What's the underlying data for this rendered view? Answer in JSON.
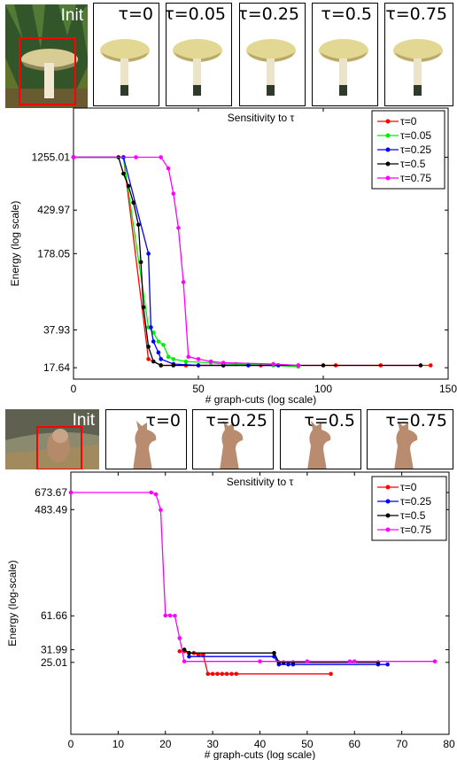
{
  "panel1": {
    "init_label": "Init",
    "tau_labels": [
      "τ=0",
      "τ=0.05",
      "τ=0.25",
      "τ=0.5",
      "τ=0.75"
    ]
  },
  "panel2": {
    "init_label": "Init",
    "tau_labels": [
      "τ=0",
      "τ=0.25",
      "τ=0.5",
      "τ=0.75"
    ]
  },
  "colors": {
    "red": "#ff0000",
    "green": "#00ee00",
    "blue": "#0000ff",
    "black": "#000000",
    "magenta": "#ff00ff"
  },
  "chart_data": [
    {
      "type": "line",
      "title": "Sensitivity to τ",
      "xlabel": "# graph-cuts (log scale)",
      "ylabel": "Energy (log scale)",
      "xlim": [
        0,
        150
      ],
      "xticks": [
        0,
        50,
        100,
        150
      ],
      "yscale": "log",
      "ylim": [
        14,
        3400
      ],
      "yticks": [
        17.64,
        37.93,
        178.05,
        429.97,
        1255.01
      ],
      "ytick_labels": [
        "17.64",
        "37.93",
        "178.05",
        "429.97",
        "1255.01"
      ],
      "legend_position": "top-right",
      "series": [
        {
          "name": "τ=0",
          "color": "#ff0000",
          "x": [
            0,
            20,
            30,
            35,
            45,
            50,
            60,
            75,
            90,
            105,
            123,
            143
          ],
          "y": [
            1255,
            1255,
            21,
            18.5,
            18.5,
            18.5,
            18.5,
            18.5,
            18.5,
            18.5,
            18.5,
            18.5
          ]
        },
        {
          "name": "τ=0.05",
          "color": "#00ee00",
          "x": [
            0,
            20,
            30,
            32,
            34,
            36,
            38,
            40,
            45,
            55,
            60,
            65,
            70,
            80,
            90
          ],
          "y": [
            1255,
            1255,
            40,
            36,
            30,
            28,
            22,
            21,
            20,
            19.5,
            19,
            19,
            18.8,
            18.5,
            18
          ]
        },
        {
          "name": "τ=0.25",
          "color": "#0000ff",
          "x": [
            0,
            20,
            30,
            31,
            32,
            34,
            35,
            40,
            50,
            60,
            70,
            82
          ],
          "y": [
            1255,
            1255,
            178,
            40,
            30,
            24,
            21,
            19,
            18.5,
            18.5,
            18.5,
            18.5
          ]
        },
        {
          "name": "τ=0.5",
          "color": "#000000",
          "x": [
            0,
            18,
            20,
            22,
            24,
            26,
            27,
            28,
            30,
            32,
            35,
            40,
            60,
            100,
            139
          ],
          "y": [
            1255,
            1255,
            900,
            700,
            500,
            320,
            150,
            60,
            27,
            20,
            18.5,
            18.5,
            18.5,
            18.5,
            18.5
          ]
        },
        {
          "name": "τ=0.75",
          "color": "#ff00ff",
          "x": [
            0,
            25,
            35,
            38,
            40,
            42,
            44,
            46,
            50,
            55,
            60,
            80,
            90
          ],
          "y": [
            1255,
            1255,
            1255,
            1000,
            600,
            300,
            100,
            22,
            21,
            20,
            19.5,
            19,
            18.5
          ]
        }
      ]
    },
    {
      "type": "line",
      "title": "Sensitivity to τ",
      "xlabel": "# graph-cuts (log scale)",
      "ylabel": "Energy (log-scale)",
      "xlim": [
        0,
        80
      ],
      "xticks": [
        0,
        10,
        20,
        30,
        40,
        50,
        60,
        70,
        80
      ],
      "yscale": "log",
      "ylim": [
        6.2,
        1000
      ],
      "yticks": [
        25.01,
        31.99,
        61.66,
        483.49,
        673.67
      ],
      "ytick_labels": [
        "25.01",
        "31.99",
        "61.66",
        "483.49",
        "673.67"
      ],
      "legend_position": "top-right",
      "series": [
        {
          "name": "τ=0",
          "color": "#ff0000",
          "x": [
            23,
            24,
            25,
            26,
            27,
            28,
            29,
            30,
            31,
            32,
            33,
            34,
            35,
            55
          ],
          "y": [
            31,
            31,
            30,
            30,
            29,
            29,
            20,
            20,
            20,
            20,
            20,
            20,
            20,
            20
          ]
        },
        {
          "name": "τ=0.25",
          "color": "#0000ff",
          "x": [
            25,
            43,
            44,
            46,
            47,
            65,
            67
          ],
          "y": [
            28,
            28,
            24,
            24,
            24,
            24,
            24
          ]
        },
        {
          "name": "τ=0.5",
          "color": "#000000",
          "x": [
            24,
            25,
            43,
            44,
            45,
            47,
            65
          ],
          "y": [
            32,
            30,
            30,
            25,
            25,
            25,
            25
          ]
        },
        {
          "name": "τ=0.75",
          "color": "#ff00ff",
          "x": [
            0,
            17,
            18,
            19,
            20,
            21,
            22,
            23,
            24,
            40,
            50,
            59,
            60,
            77
          ],
          "y": [
            673.67,
            673.67,
            650,
            480,
            62,
            62,
            61.66,
            40,
            25.5,
            25.5,
            25.5,
            25.5,
            25.5,
            25.5
          ]
        }
      ]
    }
  ]
}
